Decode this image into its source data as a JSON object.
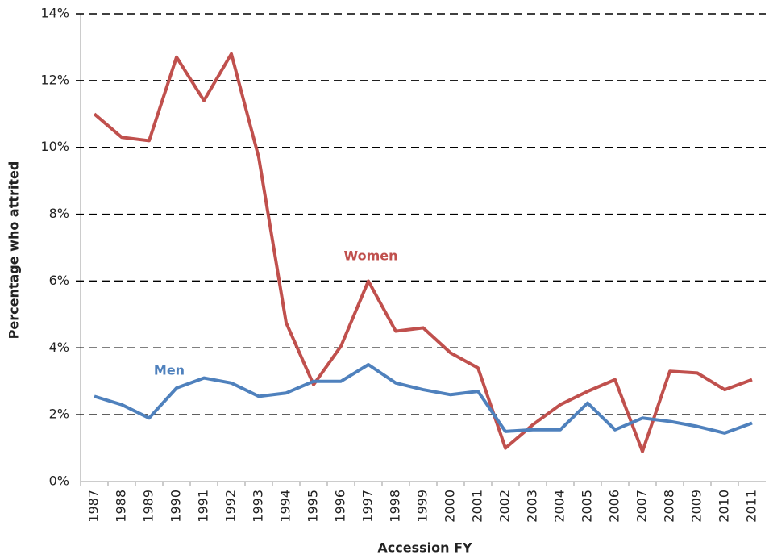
{
  "chart_data": {
    "type": "line",
    "y_label": "Percentage who attrited",
    "x_label": "Accession FY",
    "categories": [
      "1987",
      "1988",
      "1989",
      "1990",
      "1991",
      "1992",
      "1993",
      "1994",
      "1995",
      "1996",
      "1997",
      "1998",
      "1999",
      "2000",
      "2001",
      "2002",
      "2003",
      "2004",
      "2005",
      "2006",
      "2007",
      "2008",
      "2009",
      "2010",
      "2011"
    ],
    "series": [
      {
        "name": "Women",
        "color": "#c0504d",
        "values": [
          11.0,
          10.3,
          10.2,
          12.7,
          11.4,
          12.8,
          9.7,
          4.75,
          2.9,
          4.05,
          6.0,
          4.5,
          4.6,
          3.85,
          3.4,
          1.0,
          1.7,
          2.3,
          2.7,
          3.05,
          0.9,
          3.3,
          3.25,
          2.75,
          3.05
        ]
      },
      {
        "name": "Men",
        "color": "#4f81bd",
        "values": [
          2.55,
          2.3,
          1.9,
          2.8,
          3.1,
          2.95,
          2.55,
          2.65,
          3.0,
          3.0,
          3.5,
          2.95,
          2.75,
          2.6,
          2.7,
          1.5,
          1.55,
          1.55,
          2.35,
          1.55,
          1.9,
          1.8,
          1.65,
          1.45,
          1.75
        ]
      }
    ],
    "ylim": [
      0,
      14
    ],
    "yticks": [
      {
        "value": 0,
        "label": "0%"
      },
      {
        "value": 2,
        "label": "2%"
      },
      {
        "value": 4,
        "label": "4%"
      },
      {
        "value": 6,
        "label": "6%"
      },
      {
        "value": 8,
        "label": "8%"
      },
      {
        "value": 10,
        "label": "10%"
      },
      {
        "value": 12,
        "label": "12%"
      },
      {
        "value": 14,
        "label": "14%"
      }
    ],
    "grid": true
  }
}
